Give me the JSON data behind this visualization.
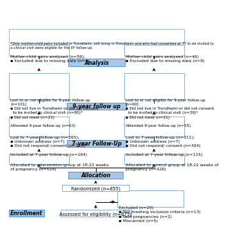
{
  "bg": "#ffffff",
  "sec_fill": "#a8c8e8",
  "sec_edge": "#5b9bd5",
  "box_fill": "#ffffff",
  "box_edge": "#8bafd0",
  "enroll_text": "Enrollment",
  "top_text": "Assessed for eligibility (n=875)",
  "excl_text": "Excluded (n=20)\n▪ Not meeting inclusion criteria (n=13)\n▪ Twin pregnancies (n=2)\n▪ Miscarried (n=5)",
  "rand_text": "Randomized (n=855)",
  "alloc_text": "Allocation",
  "lalloc_text": "Allocated to intervention group at 18-22 weeks\nof pregnancy (n=429)",
  "ralloc_text": "Allocated to control group at 18-22 weeks of\npregnancy (n=426)",
  "fu7_text": "7-year Follow-Up",
  "l7_text": "Lost to 7-year follow-up (n=265);\n▪ Unknown address (n=7)\n▪ Did not respond/ consent (n=258)\n\nIncluded at 7-year follow-up (n=164)",
  "r7_text": "Lost to 7-year follow-up (n=311);\n▪ Unknown address (n=7)\n▪ Did not respond/ consent (n=304)\n\nIncluded at 7-year follow-up (n=115)",
  "fu9_text": "9-year follow up",
  "l9_text": "Lost to or not eligible for 9-year follow-up\n(n=101)\n▪ Did not live in Trondheim or did not consent\n  to be invited to clinical visit (n=80)*\n▪ Did not meet (n=21)\n\nAttended 9-year follow-up (n=63)",
  "r9_text": "Lost to or not eligible for 9-year follow-up\n(n=60)\n▪ Did not live in Trondheim or did not consent\n  to be invited to clinical visit (n=39)*\n▪ Did not meet (n=21)\n\nAttended 9-year follow-up (n=55)",
  "anal_text": "Analysis",
  "lanal_text": "Mother-child pairs analysed (n=59);\n▪ Excluded due to missing data (n=4)",
  "ranal_text": "Mother-child pairs analysed (n=46)\n▪ Excluded due to missing data (n=9)",
  "foot_text": "*Only mother-child pairs included in Trondheim, still living in Trondheim and who had consented at 7Y to be invited to\na clinical visit were eligible for the 9Y follow-up."
}
